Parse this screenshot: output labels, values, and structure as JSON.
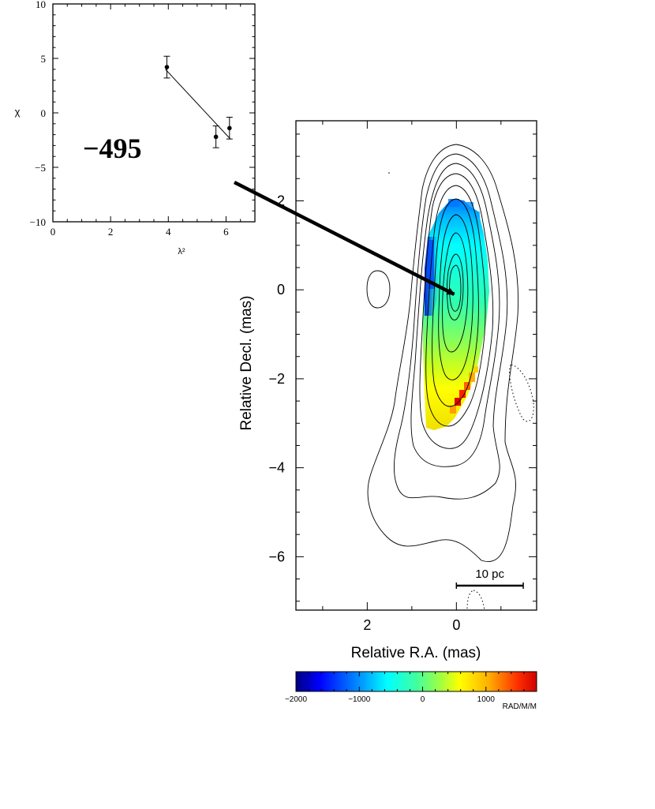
{
  "chart_data": [
    {
      "type": "scatter",
      "panel": "inset",
      "xlabel": "λ²",
      "ylabel": "χ",
      "xlim": [
        0,
        7
      ],
      "ylim": [
        -10,
        10
      ],
      "x_ticks": [
        0,
        2,
        4,
        6
      ],
      "y_ticks": [
        -10,
        -5,
        0,
        5,
        10
      ],
      "x_tick_labels": [
        "0",
        "2",
        "4",
        "6"
      ],
      "y_tick_labels": [
        "−10",
        "−5",
        "0",
        "5",
        "10"
      ],
      "annotation": "−495",
      "points": [
        {
          "x": 3.95,
          "y": 4.2,
          "err": 1.0
        },
        {
          "x": 5.65,
          "y": -2.2,
          "err": 1.0
        },
        {
          "x": 6.12,
          "y": -1.4,
          "err": 1.0
        }
      ],
      "fit_line": {
        "x": [
          3.9,
          6.15
        ],
        "y": [
          4.0,
          -2.4
        ]
      }
    },
    {
      "type": "heatmap",
      "panel": "main",
      "xlabel": "Relative R.A. (mas)",
      "ylabel": "Relative Decl. (mas)",
      "xlim": [
        3.6,
        -1.8
      ],
      "ylim": [
        -7.2,
        3.8
      ],
      "x_ticks": [
        2,
        0
      ],
      "y_ticks": [
        2,
        0,
        -2,
        -4,
        -6
      ],
      "x_tick_labels": [
        "2",
        "0"
      ],
      "y_tick_labels": [
        "2",
        "0",
        "−2",
        "−4",
        "−6"
      ],
      "scale_bar": {
        "label": "10 pc",
        "ra_start": 0,
        "ra_end": -1.5,
        "dec": -6.65
      },
      "arrow": {
        "to_ra": 0.05,
        "to_dec": -0.1
      },
      "contours": "total intensity, nested levels",
      "colormap": [
        "#000080",
        "#0000ff",
        "#00c0ff",
        "#00ffff",
        "#40ffa0",
        "#a0ff40",
        "#ffff00",
        "#ffa000",
        "#ff2000",
        "#e00000"
      ]
    },
    {
      "type": "colorbar",
      "panel": "colorbar",
      "range": [
        -2000,
        1800
      ],
      "ticks": [
        -2000,
        -1000,
        0,
        1000
      ],
      "tick_labels": [
        "−2000",
        "−1000",
        "0",
        "1000"
      ],
      "unit": "RAD/M/M"
    }
  ]
}
